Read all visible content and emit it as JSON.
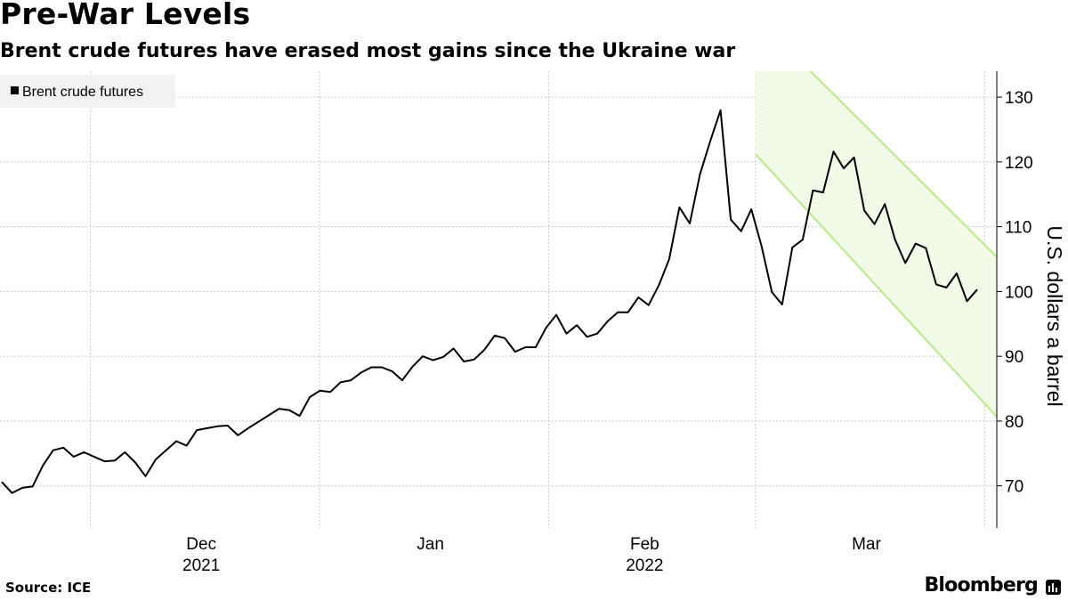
{
  "header": {
    "title": "Pre-War Levels",
    "subtitle": "Brent crude futures have erased most gains since the Ukraine war"
  },
  "footer": {
    "source": "Source: ICE",
    "brand": "Bloomberg"
  },
  "colors": {
    "line": "#000000",
    "grid": "#c8c8c8",
    "channel_fill": "#f1f9e7",
    "channel_line": "#b8e986",
    "legend_bg": "#f2f2f2"
  },
  "chart_data": {
    "type": "line",
    "title": "Pre-War Levels",
    "subtitle": "Brent crude futures have erased most gains since the Ukraine war",
    "ylabel": "U.S. dollars a barrel",
    "ylim": [
      63.5,
      134
    ],
    "yticks": [
      70,
      80,
      90,
      100,
      110,
      120,
      130
    ],
    "legend": {
      "placement": "top-left",
      "entries": [
        "Brent crude futures"
      ]
    },
    "x_tick_labels": [
      {
        "label": "Dec",
        "sub": "2021"
      },
      {
        "label": "Jan",
        "sub": ""
      },
      {
        "label": "Feb",
        "sub": "2022"
      },
      {
        "label": "Mar",
        "sub": ""
      }
    ],
    "grid": true,
    "series": [
      {
        "name": "Brent crude futures",
        "start_date": "2021-11-19",
        "end_date": "2022-03-31",
        "values": [
          70.6,
          68.9,
          69.7,
          69.9,
          73.1,
          75.5,
          75.9,
          74.5,
          75.2,
          74.5,
          73.8,
          73.9,
          75.2,
          73.6,
          71.5,
          74.1,
          75.5,
          76.9,
          76.2,
          78.6,
          78.9,
          79.2,
          79.3,
          77.8,
          78.9,
          79.9,
          80.9,
          81.9,
          81.7,
          80.8,
          83.7,
          84.7,
          84.5,
          86.0,
          86.3,
          87.5,
          88.3,
          88.3,
          87.7,
          86.3,
          88.4,
          90.0,
          89.4,
          89.9,
          91.2,
          89.2,
          89.5,
          91.0,
          93.2,
          92.8,
          90.7,
          91.4,
          91.4,
          94.4,
          96.4,
          93.5,
          94.8,
          93.0,
          93.5,
          95.4,
          96.8,
          96.8,
          99.1,
          97.9,
          101.0,
          105.0,
          113.0,
          110.5,
          118.1,
          123.2,
          127.98,
          111.1,
          109.3,
          112.7,
          107.0,
          99.9,
          98.0,
          106.8,
          108.0,
          115.6,
          115.3,
          121.6,
          119.0,
          120.7,
          112.5,
          110.4,
          113.5,
          108.0,
          104.4,
          107.4,
          106.7,
          101.1,
          100.6,
          102.8,
          98.5,
          100.3
        ]
      }
    ],
    "annotations": [
      {
        "type": "downtrend-channel",
        "start": "2022-03-01",
        "end": "2022-04-06",
        "lower_start": 121.2,
        "lower_end": 76.5,
        "upper_start": 142.5,
        "upper_end": 101.5
      }
    ]
  }
}
